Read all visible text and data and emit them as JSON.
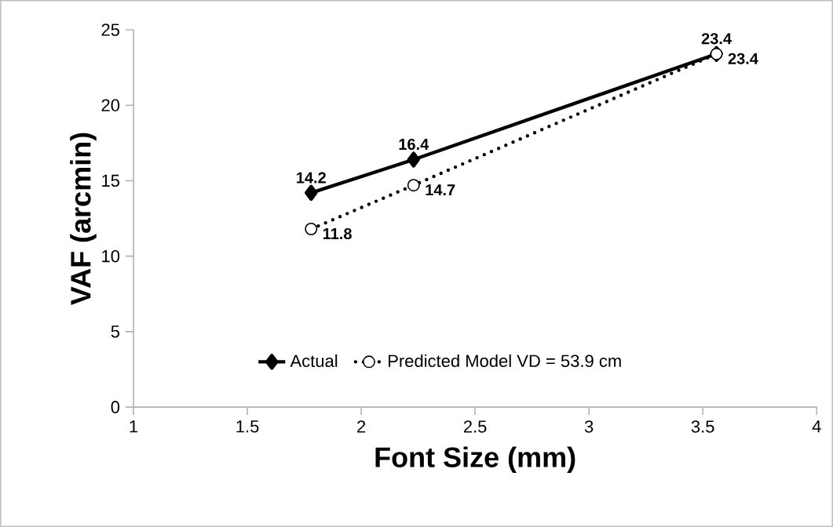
{
  "chart_data": {
    "type": "line",
    "xlabel": "Font Size (mm)",
    "ylabel": "VAF (arcmin)",
    "x": [
      1.78,
      2.23,
      3.56
    ],
    "series": [
      {
        "name": "Actual",
        "color": "#000000",
        "values": [
          14.2,
          16.4,
          23.4
        ],
        "marker": "diamond",
        "line_style": "solid"
      },
      {
        "name": "Predicted Model VD = 53.9 cm",
        "color": "#000000",
        "values": [
          11.8,
          14.7,
          23.4
        ],
        "marker": "circle",
        "line_style": "dotted"
      }
    ],
    "xlim": [
      1,
      4
    ],
    "ylim": [
      0,
      25
    ],
    "xticks": [
      1,
      1.5,
      2,
      2.5,
      3,
      3.5,
      4
    ],
    "yticks": [
      0,
      5,
      10,
      15,
      20,
      25
    ],
    "data_labels": true,
    "legend": "bottom",
    "grid": false
  }
}
